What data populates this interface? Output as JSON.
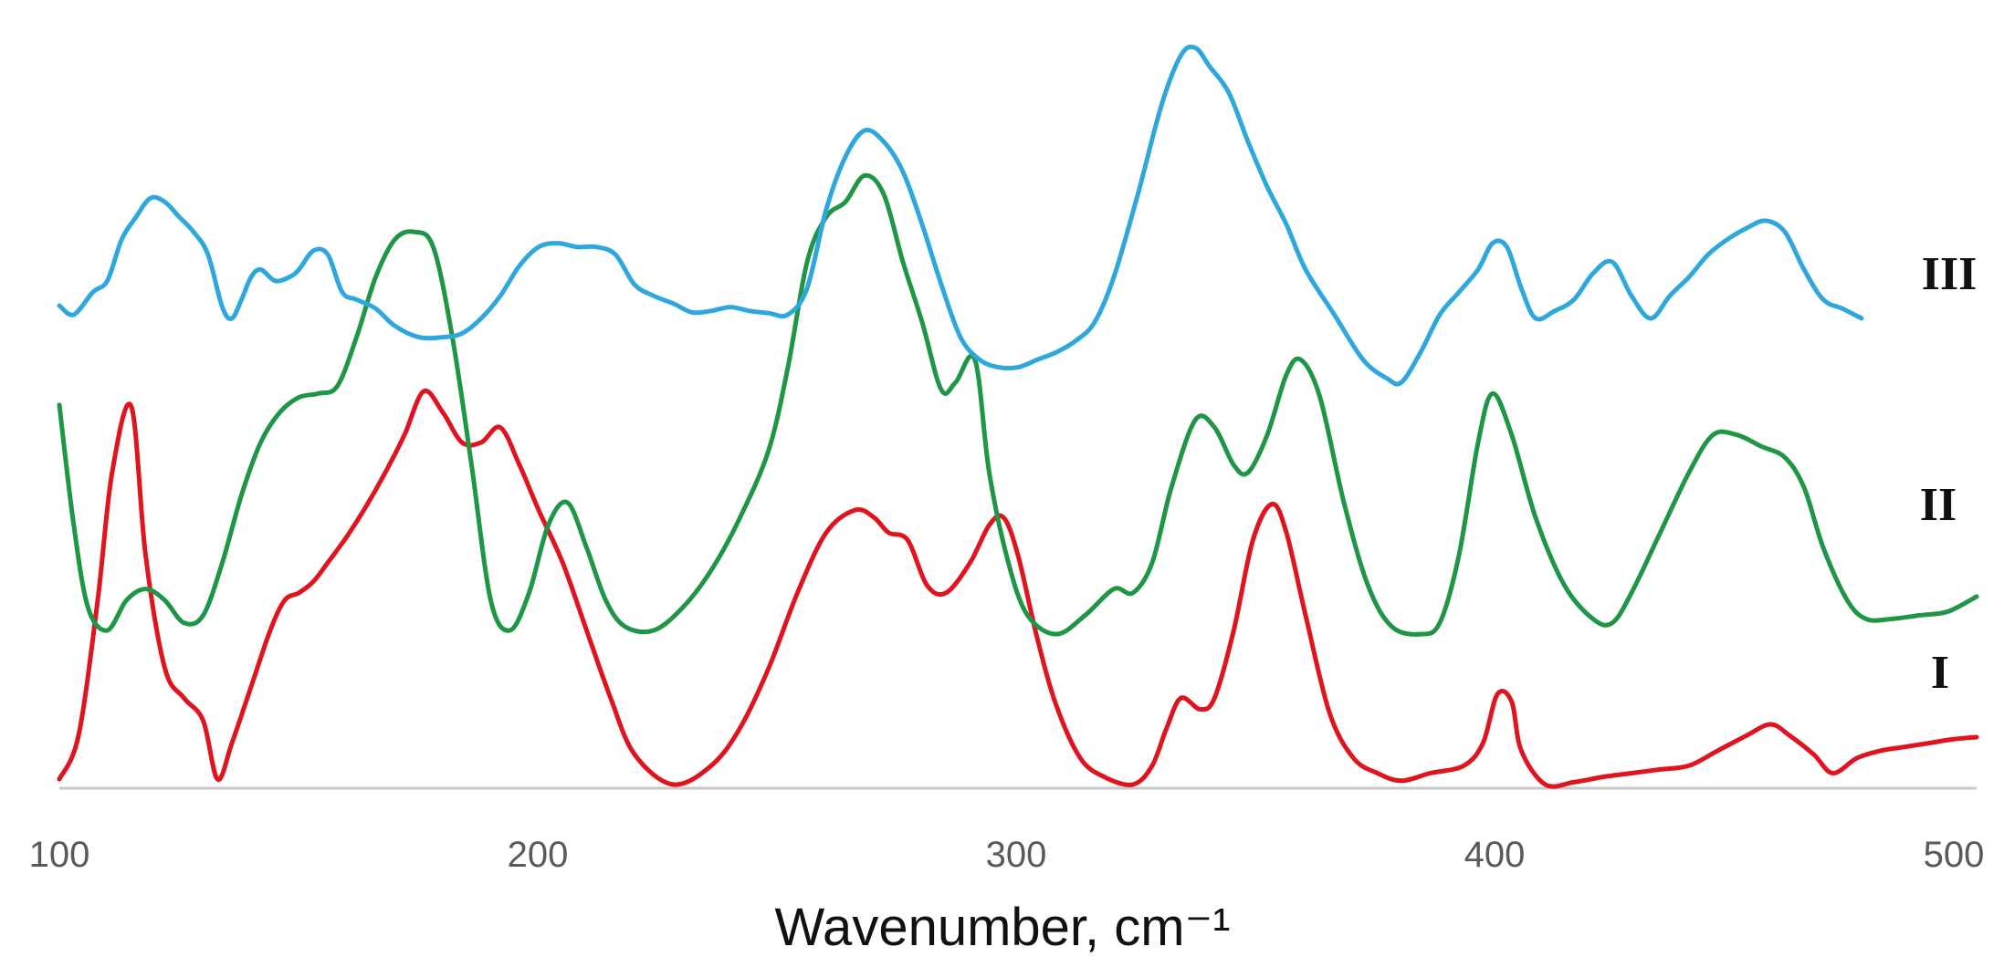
{
  "chart_data": {
    "type": "line",
    "title": "",
    "xlabel": "Wavenumber, cm⁻¹",
    "ylabel": "",
    "xlim": [
      100,
      500
    ],
    "ylim": [
      0,
      1
    ],
    "xticks": [
      "100",
      "200",
      "300",
      "400",
      "500"
    ],
    "grid": false,
    "legend": "none",
    "colors": {
      "I": "#e0141e",
      "II": "#1e9646",
      "III": "#2ea8dc",
      "axis": "#c8c8c8"
    },
    "series": [
      {
        "name": "I",
        "points": [
          [
            100,
            0.012
          ],
          [
            104,
            0.07
          ],
          [
            108,
            0.25
          ],
          [
            111,
            0.42
          ],
          [
            115,
            0.508
          ],
          [
            118,
            0.31
          ],
          [
            122,
            0.16
          ],
          [
            126,
            0.12
          ],
          [
            130,
            0.09
          ],
          [
            133,
            0.012
          ],
          [
            136,
            0.06
          ],
          [
            140,
            0.135
          ],
          [
            144,
            0.21
          ],
          [
            147,
            0.25
          ],
          [
            150,
            0.26
          ],
          [
            153,
            0.275
          ],
          [
            156,
            0.3
          ],
          [
            160,
            0.335
          ],
          [
            164,
            0.375
          ],
          [
            168,
            0.42
          ],
          [
            172,
            0.47
          ],
          [
            176,
            0.528
          ],
          [
            180,
            0.5
          ],
          [
            184,
            0.46
          ],
          [
            188,
            0.46
          ],
          [
            192,
            0.48
          ],
          [
            196,
            0.43
          ],
          [
            200,
            0.37
          ],
          [
            205,
            0.3
          ],
          [
            210,
            0.21
          ],
          [
            215,
            0.12
          ],
          [
            220,
            0.045
          ],
          [
            228,
            0.005
          ],
          [
            236,
            0.03
          ],
          [
            242,
            0.08
          ],
          [
            248,
            0.16
          ],
          [
            254,
            0.26
          ],
          [
            260,
            0.34
          ],
          [
            266,
            0.37
          ],
          [
            270,
            0.36
          ],
          [
            273,
            0.34
          ],
          [
            277,
            0.33
          ],
          [
            281,
            0.27
          ],
          [
            285,
            0.26
          ],
          [
            290,
            0.3
          ],
          [
            294,
            0.35
          ],
          [
            297,
            0.36
          ],
          [
            300,
            0.31
          ],
          [
            304,
            0.2
          ],
          [
            308,
            0.11
          ],
          [
            313,
            0.04
          ],
          [
            318,
            0.015
          ],
          [
            324,
            0.005
          ],
          [
            328,
            0.03
          ],
          [
            331,
            0.08
          ],
          [
            334,
            0.12
          ],
          [
            338,
            0.105
          ],
          [
            341,
            0.12
          ],
          [
            345,
            0.21
          ],
          [
            349,
            0.33
          ],
          [
            353,
            0.378
          ],
          [
            356,
            0.34
          ],
          [
            360,
            0.23
          ],
          [
            365,
            0.1
          ],
          [
            370,
            0.04
          ],
          [
            375,
            0.02
          ],
          [
            380,
            0.01
          ],
          [
            386,
            0.02
          ],
          [
            393,
            0.03
          ],
          [
            397,
            0.06
          ],
          [
            400,
            0.125
          ],
          [
            403,
            0.115
          ],
          [
            405,
            0.05
          ],
          [
            410,
            0.005
          ],
          [
            416,
            0.008
          ],
          [
            422,
            0.015
          ],
          [
            428,
            0.02
          ],
          [
            434,
            0.025
          ],
          [
            440,
            0.03
          ],
          [
            446,
            0.05
          ],
          [
            452,
            0.07
          ],
          [
            457,
            0.085
          ],
          [
            461,
            0.07
          ],
          [
            466,
            0.045
          ],
          [
            470,
            0.02
          ],
          [
            475,
            0.04
          ],
          [
            480,
            0.05
          ],
          [
            485,
            0.055
          ],
          [
            490,
            0.06
          ],
          [
            495,
            0.065
          ],
          [
            500,
            0.068
          ]
        ]
      },
      {
        "name": "II",
        "points": [
          [
            100,
            0.51
          ],
          [
            103,
            0.35
          ],
          [
            106,
            0.24
          ],
          [
            110,
            0.21
          ],
          [
            114,
            0.25
          ],
          [
            118,
            0.265
          ],
          [
            122,
            0.25
          ],
          [
            126,
            0.22
          ],
          [
            130,
            0.23
          ],
          [
            134,
            0.3
          ],
          [
            138,
            0.39
          ],
          [
            142,
            0.46
          ],
          [
            146,
            0.5
          ],
          [
            150,
            0.52
          ],
          [
            154,
            0.525
          ],
          [
            158,
            0.535
          ],
          [
            162,
            0.6
          ],
          [
            166,
            0.68
          ],
          [
            170,
            0.73
          ],
          [
            174,
            0.74
          ],
          [
            178,
            0.72
          ],
          [
            182,
            0.6
          ],
          [
            186,
            0.43
          ],
          [
            190,
            0.25
          ],
          [
            194,
            0.21
          ],
          [
            198,
            0.26
          ],
          [
            202,
            0.35
          ],
          [
            206,
            0.38
          ],
          [
            210,
            0.32
          ],
          [
            214,
            0.25
          ],
          [
            218,
            0.215
          ],
          [
            224,
            0.21
          ],
          [
            230,
            0.24
          ],
          [
            236,
            0.29
          ],
          [
            242,
            0.36
          ],
          [
            248,
            0.45
          ],
          [
            252,
            0.56
          ],
          [
            256,
            0.7
          ],
          [
            260,
            0.76
          ],
          [
            264,
            0.78
          ],
          [
            268,
            0.815
          ],
          [
            272,
            0.79
          ],
          [
            276,
            0.7
          ],
          [
            280,
            0.62
          ],
          [
            284,
            0.53
          ],
          [
            287,
            0.54
          ],
          [
            291,
            0.57
          ],
          [
            294,
            0.42
          ],
          [
            298,
            0.3
          ],
          [
            302,
            0.23
          ],
          [
            308,
            0.205
          ],
          [
            314,
            0.23
          ],
          [
            320,
            0.265
          ],
          [
            324,
            0.26
          ],
          [
            328,
            0.3
          ],
          [
            332,
            0.4
          ],
          [
            337,
            0.49
          ],
          [
            341,
            0.48
          ],
          [
            345,
            0.43
          ],
          [
            348,
            0.42
          ],
          [
            352,
            0.47
          ],
          [
            356,
            0.55
          ],
          [
            359,
            0.57
          ],
          [
            363,
            0.52
          ],
          [
            368,
            0.38
          ],
          [
            373,
            0.27
          ],
          [
            378,
            0.215
          ],
          [
            384,
            0.205
          ],
          [
            388,
            0.22
          ],
          [
            392,
            0.31
          ],
          [
            396,
            0.46
          ],
          [
            399,
            0.525
          ],
          [
            403,
            0.47
          ],
          [
            408,
            0.36
          ],
          [
            414,
            0.27
          ],
          [
            420,
            0.225
          ],
          [
            424,
            0.22
          ],
          [
            428,
            0.26
          ],
          [
            434,
            0.34
          ],
          [
            440,
            0.42
          ],
          [
            445,
            0.47
          ],
          [
            450,
            0.47
          ],
          [
            455,
            0.455
          ],
          [
            460,
            0.44
          ],
          [
            464,
            0.4
          ],
          [
            468,
            0.32
          ],
          [
            473,
            0.25
          ],
          [
            477,
            0.225
          ],
          [
            482,
            0.225
          ],
          [
            488,
            0.23
          ],
          [
            494,
            0.235
          ],
          [
            500,
            0.255
          ]
        ]
      },
      {
        "name": "III",
        "points": [
          [
            100,
            0.642
          ],
          [
            103,
            0.63
          ],
          [
            107,
            0.66
          ],
          [
            110,
            0.675
          ],
          [
            113,
            0.73
          ],
          [
            116,
            0.76
          ],
          [
            119,
            0.785
          ],
          [
            122,
            0.78
          ],
          [
            125,
            0.76
          ],
          [
            128,
            0.74
          ],
          [
            131,
            0.71
          ],
          [
            134,
            0.64
          ],
          [
            136,
            0.625
          ],
          [
            138,
            0.65
          ],
          [
            140,
            0.68
          ],
          [
            142,
            0.69
          ],
          [
            145,
            0.675
          ],
          [
            148,
            0.68
          ],
          [
            150,
            0.69
          ],
          [
            153,
            0.715
          ],
          [
            156,
            0.71
          ],
          [
            159,
            0.66
          ],
          [
            162,
            0.65
          ],
          [
            166,
            0.638
          ],
          [
            170,
            0.615
          ],
          [
            175,
            0.6
          ],
          [
            180,
            0.6
          ],
          [
            184,
            0.605
          ],
          [
            188,
            0.625
          ],
          [
            192,
            0.655
          ],
          [
            196,
            0.695
          ],
          [
            200,
            0.72
          ],
          [
            204,
            0.725
          ],
          [
            208,
            0.72
          ],
          [
            212,
            0.72
          ],
          [
            216,
            0.71
          ],
          [
            220,
            0.67
          ],
          [
            224,
            0.655
          ],
          [
            228,
            0.645
          ],
          [
            232,
            0.633
          ],
          [
            236,
            0.635
          ],
          [
            240,
            0.64
          ],
          [
            244,
            0.635
          ],
          [
            248,
            0.632
          ],
          [
            252,
            0.63
          ],
          [
            256,
            0.665
          ],
          [
            260,
            0.77
          ],
          [
            264,
            0.84
          ],
          [
            268,
            0.875
          ],
          [
            272,
            0.86
          ],
          [
            276,
            0.82
          ],
          [
            280,
            0.75
          ],
          [
            284,
            0.67
          ],
          [
            288,
            0.6
          ],
          [
            292,
            0.57
          ],
          [
            296,
            0.56
          ],
          [
            300,
            0.56
          ],
          [
            304,
            0.57
          ],
          [
            308,
            0.58
          ],
          [
            312,
            0.595
          ],
          [
            316,
            0.62
          ],
          [
            320,
            0.68
          ],
          [
            325,
            0.79
          ],
          [
            330,
            0.91
          ],
          [
            334,
            0.975
          ],
          [
            337,
            0.985
          ],
          [
            340,
            0.96
          ],
          [
            344,
            0.925
          ],
          [
            348,
            0.86
          ],
          [
            352,
            0.8
          ],
          [
            356,
            0.75
          ],
          [
            360,
            0.69
          ],
          [
            366,
            0.63
          ],
          [
            372,
            0.57
          ],
          [
            377,
            0.545
          ],
          [
            380,
            0.54
          ],
          [
            384,
            0.58
          ],
          [
            388,
            0.63
          ],
          [
            392,
            0.66
          ],
          [
            396,
            0.69
          ],
          [
            399,
            0.725
          ],
          [
            402,
            0.72
          ],
          [
            405,
            0.665
          ],
          [
            408,
            0.625
          ],
          [
            412,
            0.635
          ],
          [
            416,
            0.65
          ],
          [
            420,
            0.685
          ],
          [
            424,
            0.7
          ],
          [
            428,
            0.655
          ],
          [
            432,
            0.625
          ],
          [
            436,
            0.655
          ],
          [
            440,
            0.68
          ],
          [
            444,
            0.71
          ],
          [
            448,
            0.73
          ],
          [
            452,
            0.745
          ],
          [
            456,
            0.755
          ],
          [
            460,
            0.74
          ],
          [
            464,
            0.69
          ],
          [
            468,
            0.65
          ],
          [
            472,
            0.638
          ],
          [
            476,
            0.625
          ]
        ]
      }
    ]
  }
}
